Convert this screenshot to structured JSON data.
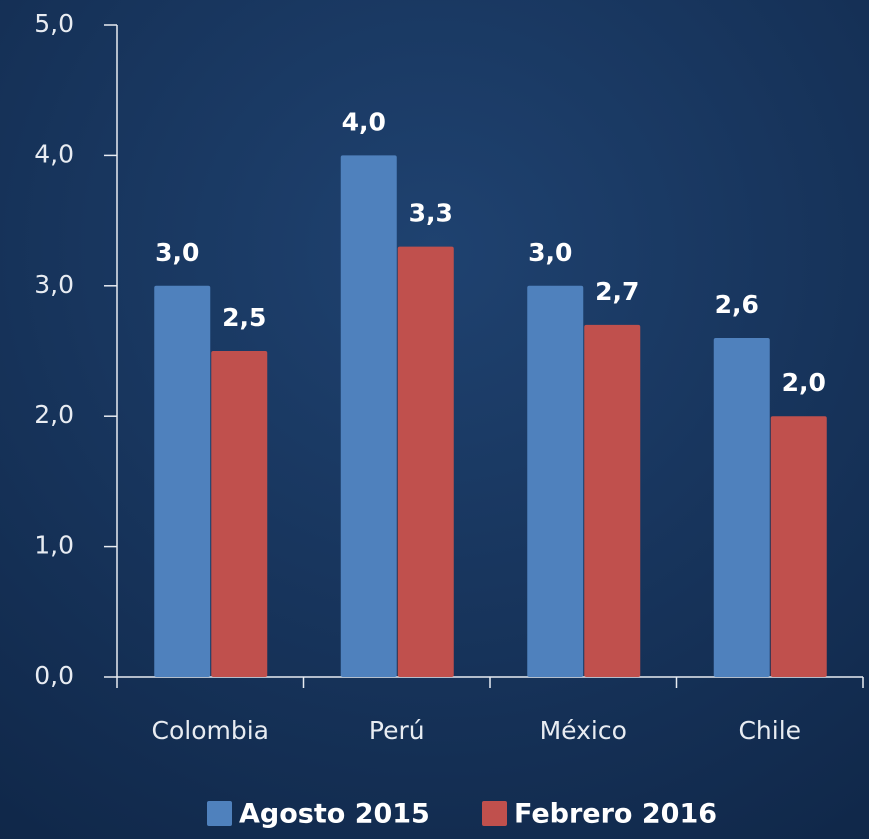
{
  "chart_data": {
    "type": "bar",
    "categories": [
      "Colombia",
      "Perú",
      "México",
      "Chile"
    ],
    "series": [
      {
        "name": "Agosto 2015",
        "color": "#4f81bd",
        "values": [
          3.0,
          4.0,
          3.0,
          2.6
        ],
        "value_labels": [
          "3,0",
          "4,0",
          "3,0",
          "2,6"
        ]
      },
      {
        "name": "Febrero 2016",
        "color": "#c0504d",
        "values": [
          2.5,
          3.3,
          2.7,
          2.0
        ],
        "value_labels": [
          "2,5",
          "3,3",
          "2,7",
          "2,0"
        ]
      }
    ],
    "ylim": [
      0,
      5
    ],
    "yticks": [
      {
        "value": 0,
        "label": "0,0"
      },
      {
        "value": 1,
        "label": "1,0"
      },
      {
        "value": 2,
        "label": "2,0"
      },
      {
        "value": 3,
        "label": "3,0"
      },
      {
        "value": 4,
        "label": "4,0"
      },
      {
        "value": 5,
        "label": "5,0"
      }
    ],
    "legend": "bottom"
  }
}
